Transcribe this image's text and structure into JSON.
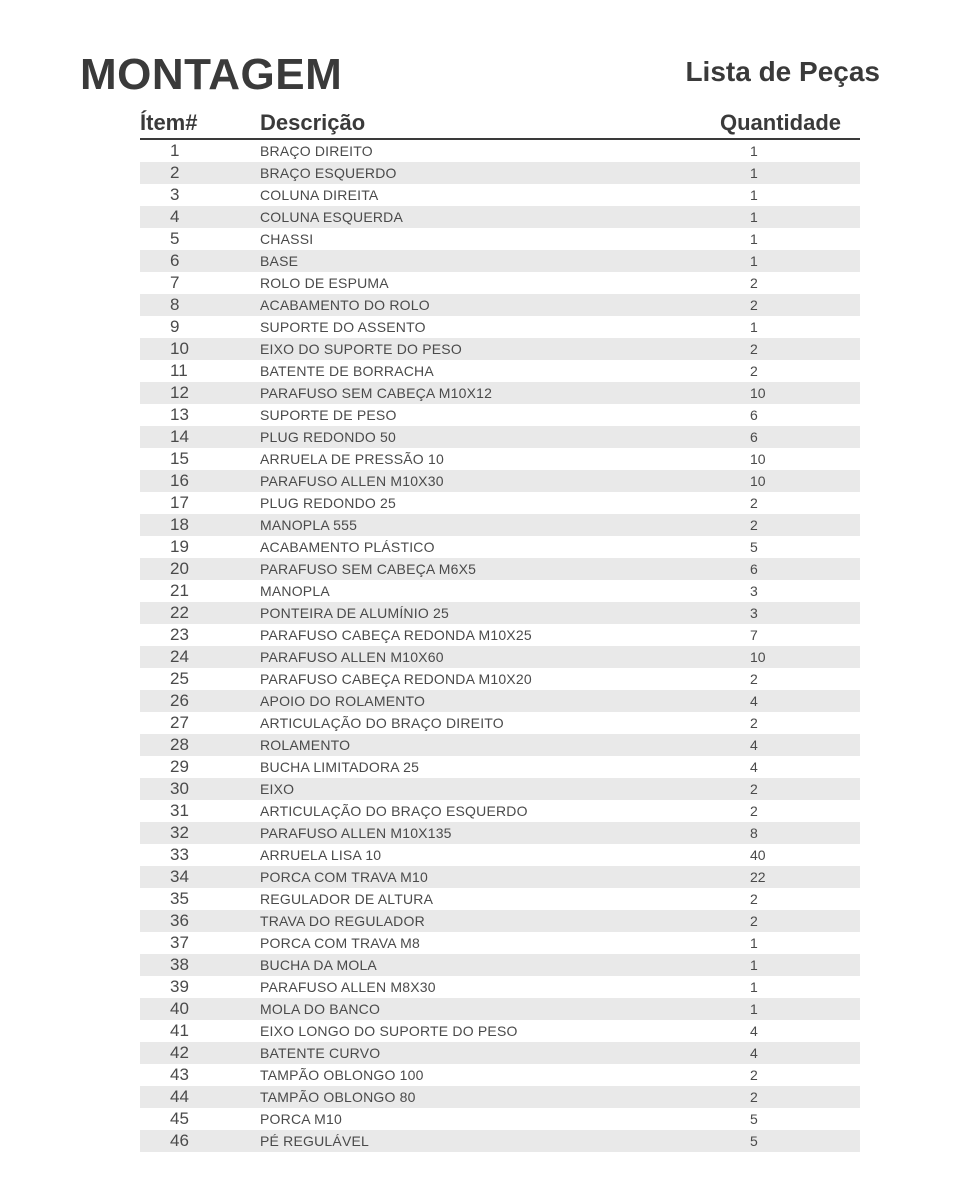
{
  "title": "MONTAGEM",
  "subtitle": "Lista de Peças",
  "columns": {
    "item": "Ítem#",
    "desc": "Descrição",
    "qty": "Quantidade"
  },
  "rows": [
    {
      "item": "1",
      "desc": "BRAÇO DIREITO",
      "qty": "1"
    },
    {
      "item": "2",
      "desc": "BRAÇO ESQUERDO",
      "qty": "1"
    },
    {
      "item": "3",
      "desc": "COLUNA DIREITA",
      "qty": "1"
    },
    {
      "item": "4",
      "desc": "COLUNA ESQUERDA",
      "qty": "1"
    },
    {
      "item": "5",
      "desc": "CHASSI",
      "qty": "1"
    },
    {
      "item": "6",
      "desc": "BASE",
      "qty": "1"
    },
    {
      "item": "7",
      "desc": "ROLO DE ESPUMA",
      "qty": "2"
    },
    {
      "item": "8",
      "desc": "ACABAMENTO DO ROLO",
      "qty": "2"
    },
    {
      "item": "9",
      "desc": "SUPORTE DO ASSENTO",
      "qty": "1"
    },
    {
      "item": "10",
      "desc": "EIXO DO SUPORTE DO PESO",
      "qty": "2"
    },
    {
      "item": "11",
      "desc": "BATENTE DE BORRACHA",
      "qty": "2"
    },
    {
      "item": "12",
      "desc": "PARAFUSO SEM CABEÇA M10X12",
      "qty": "10"
    },
    {
      "item": "13",
      "desc": "SUPORTE DE PESO",
      "qty": "6"
    },
    {
      "item": "14",
      "desc": "PLUG REDONDO 50",
      "qty": "6"
    },
    {
      "item": "15",
      "desc": "ARRUELA DE PRESSÃO 10",
      "qty": "10"
    },
    {
      "item": "16",
      "desc": "PARAFUSO ALLEN M10X30",
      "qty": "10"
    },
    {
      "item": "17",
      "desc": "PLUG REDONDO 25",
      "qty": "2"
    },
    {
      "item": "18",
      "desc": "MANOPLA 555",
      "qty": "2"
    },
    {
      "item": "19",
      "desc": "ACABAMENTO PLÁSTICO",
      "qty": "5"
    },
    {
      "item": "20",
      "desc": "PARAFUSO SEM CABEÇA M6X5",
      "qty": "6"
    },
    {
      "item": "21",
      "desc": "MANOPLA",
      "qty": "3"
    },
    {
      "item": "22",
      "desc": "PONTEIRA DE ALUMÍNIO 25",
      "qty": "3"
    },
    {
      "item": "23",
      "desc": "PARAFUSO CABEÇA REDONDA M10X25",
      "qty": "7"
    },
    {
      "item": "24",
      "desc": "PARAFUSO ALLEN M10X60",
      "qty": "10"
    },
    {
      "item": "25",
      "desc": "PARAFUSO CABEÇA REDONDA M10X20",
      "qty": "2"
    },
    {
      "item": "26",
      "desc": "APOIO DO ROLAMENTO",
      "qty": "4"
    },
    {
      "item": "27",
      "desc": "ARTICULAÇÃO DO BRAÇO DIREITO",
      "qty": "2"
    },
    {
      "item": "28",
      "desc": "ROLAMENTO",
      "qty": "4"
    },
    {
      "item": "29",
      "desc": "BUCHA LIMITADORA 25",
      "qty": "4"
    },
    {
      "item": "30",
      "desc": "EIXO",
      "qty": "2"
    },
    {
      "item": "31",
      "desc": "ARTICULAÇÃO DO BRAÇO ESQUERDO",
      "qty": "2"
    },
    {
      "item": "32",
      "desc": "PARAFUSO ALLEN M10X135",
      "qty": "8"
    },
    {
      "item": "33",
      "desc": "ARRUELA LISA 10",
      "qty": "40"
    },
    {
      "item": "34",
      "desc": "PORCA COM TRAVA M10",
      "qty": "22"
    },
    {
      "item": "35",
      "desc": "REGULADOR DE ALTURA",
      "qty": "2"
    },
    {
      "item": "36",
      "desc": "TRAVA DO REGULADOR",
      "qty": "2"
    },
    {
      "item": "37",
      "desc": "PORCA COM TRAVA M8",
      "qty": "1"
    },
    {
      "item": "38",
      "desc": "BUCHA DA MOLA",
      "qty": "1"
    },
    {
      "item": "39",
      "desc": "PARAFUSO ALLEN M8X30",
      "qty": "1"
    },
    {
      "item": "40",
      "desc": "MOLA DO BANCO",
      "qty": "1"
    },
    {
      "item": "41",
      "desc": "EIXO LONGO DO SUPORTE DO PESO",
      "qty": "4"
    },
    {
      "item": "42",
      "desc": "BATENTE CURVO",
      "qty": "4"
    },
    {
      "item": "43",
      "desc": "TAMPÃO OBLONGO 100",
      "qty": "2"
    },
    {
      "item": "44",
      "desc": "TAMPÃO OBLONGO 80",
      "qty": "2"
    },
    {
      "item": "45",
      "desc": "PORCA M10",
      "qty": "5"
    },
    {
      "item": "46",
      "desc": "PÉ REGULÁVEL",
      "qty": "5"
    }
  ]
}
